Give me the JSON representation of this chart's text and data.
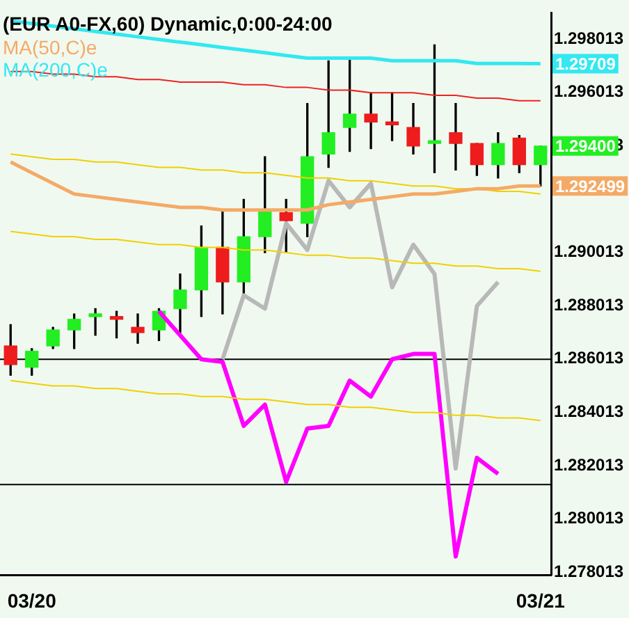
{
  "chart_data": {
    "type": "candlestick",
    "title": "(EUR A0-FX,60) Dynamic,0:00-24:00",
    "categories": [
      null,
      "03/20",
      null,
      null,
      null,
      null,
      null,
      null,
      null,
      null,
      null,
      null,
      null,
      null,
      null,
      null,
      null,
      null,
      null,
      null,
      null,
      null,
      null,
      null,
      null,
      "03/21"
    ],
    "ohlc": [
      [
        1.2865,
        1.2873,
        1.2854,
        1.2858
      ],
      [
        1.2857,
        1.2864,
        1.2854,
        1.2863
      ],
      [
        1.2865,
        1.2872,
        1.2864,
        1.2871
      ],
      [
        1.2871,
        1.2877,
        1.2864,
        1.2875
      ],
      [
        1.2876,
        1.2879,
        1.2869,
        1.2877
      ],
      [
        1.2876,
        1.2878,
        1.2868,
        1.2875
      ],
      [
        1.2872,
        1.2877,
        1.2866,
        1.287
      ],
      [
        1.2871,
        1.2879,
        1.2867,
        1.2878
      ],
      [
        1.2879,
        1.2892,
        1.287,
        1.2886
      ],
      [
        1.2886,
        1.291,
        1.2876,
        1.2902
      ],
      [
        1.2902,
        1.2916,
        1.2877,
        1.2889
      ],
      [
        1.2889,
        1.292,
        1.2884,
        1.2906
      ],
      [
        1.2906,
        1.2936,
        1.29,
        1.2916
      ],
      [
        1.2915,
        1.292,
        1.29,
        1.2912
      ],
      [
        1.2911,
        1.2956,
        1.2906,
        1.2936
      ],
      [
        1.2937,
        1.2972,
        1.2932,
        1.2945
      ],
      [
        1.2947,
        1.2973,
        1.2938,
        1.2952
      ],
      [
        1.2952,
        1.296,
        1.2939,
        1.2949
      ],
      [
        1.2949,
        1.296,
        1.2942,
        1.2948
      ],
      [
        1.2947,
        1.2956,
        1.2937,
        1.294
      ],
      [
        1.2941,
        1.2978,
        1.293,
        1.2942
      ],
      [
        1.2945,
        1.2956,
        1.2931,
        1.2941
      ],
      [
        1.2941,
        1.2941,
        1.2929,
        1.2933
      ],
      [
        1.2933,
        1.2945,
        1.2928,
        1.2941
      ],
      [
        1.2943,
        1.2944,
        1.293,
        1.2933
      ],
      [
        1.2933,
        1.294,
        1.2925,
        1.294
      ]
    ],
    "colors": [
      "#ee1c1c",
      "#22ee22",
      "#22ee22",
      "#22ee22",
      "#22ee22",
      "#ee1c1c",
      "#ee1c1c",
      "#22ee22",
      "#22ee22",
      "#22ee22",
      "#ee1c1c",
      "#22ee22",
      "#22ee22",
      "#ee1c1c",
      "#22ee22",
      "#22ee22",
      "#22ee22",
      "#ee1c1c",
      "#ee1c1c",
      "#ee1c1c",
      "#22ee22",
      "#ee1c1c",
      "#ee1c1c",
      "#22ee22",
      "#ee1c1c",
      "#22ee22"
    ],
    "series": [
      {
        "type": "line",
        "name": "MA(50,C)e",
        "color": "#f4aa66",
        "value_labels": [
          null,
          null,
          null,
          null,
          null,
          null,
          null,
          null,
          null,
          null,
          null,
          null,
          null,
          null,
          null,
          null,
          null,
          null,
          null,
          null,
          null,
          null,
          null,
          null,
          null,
          "1.292499"
        ],
        "values": [
          1.2934,
          1.293,
          1.2926,
          1.2922,
          1.2921,
          1.292,
          1.2919,
          1.2918,
          1.2917,
          1.2917,
          1.2916,
          1.2916,
          1.2916,
          1.2916,
          1.2916,
          1.2918,
          1.2919,
          1.292,
          1.2921,
          1.2922,
          1.2922,
          1.2923,
          1.2924,
          1.2924,
          1.2925,
          1.292499
        ]
      },
      {
        "type": "line",
        "name": "MA(200,C)e",
        "color": "#33e8f0",
        "value_labels": [
          null,
          null,
          null,
          null,
          null,
          null,
          null,
          null,
          null,
          null,
          null,
          null,
          null,
          null,
          null,
          null,
          null,
          null,
          null,
          null,
          null,
          null,
          null,
          null,
          null,
          "1.29709"
        ],
        "values": [
          1.2987,
          1.2986,
          1.2985,
          1.2984,
          1.2983,
          1.2982,
          1.2981,
          1.298,
          1.2979,
          1.2978,
          1.2977,
          1.2976,
          1.2975,
          1.2974,
          1.2973,
          1.2973,
          1.2973,
          1.2973,
          1.2972,
          1.2972,
          1.2972,
          1.2972,
          1.2971,
          1.2971,
          1.2971,
          1.29709
        ]
      },
      {
        "type": "line",
        "color": "#ee2222",
        "values": [
          1.2968,
          1.2968,
          1.2967,
          1.2967,
          1.2966,
          1.2966,
          1.2965,
          1.2965,
          1.2964,
          1.2964,
          1.2964,
          1.2963,
          1.2963,
          1.2962,
          1.2962,
          1.2961,
          1.2961,
          1.296,
          1.296,
          1.296,
          1.2959,
          1.2959,
          1.2958,
          1.2958,
          1.2957,
          1.2957
        ]
      },
      {
        "type": "line",
        "color": "#f0d000",
        "values": [
          1.2937,
          1.2936,
          1.2935,
          1.2935,
          1.2934,
          1.2934,
          1.2933,
          1.2932,
          1.2932,
          1.2931,
          1.2931,
          1.293,
          1.293,
          1.2929,
          1.2928,
          1.2928,
          1.2927,
          1.2927,
          1.2926,
          1.2925,
          1.2925,
          1.2924,
          1.2924,
          1.2923,
          1.2923,
          1.2922
        ]
      },
      {
        "type": "line",
        "color": "#f0d000",
        "values": [
          1.2908,
          1.2907,
          1.2906,
          1.2906,
          1.2905,
          1.2905,
          1.2904,
          1.2903,
          1.2903,
          1.2902,
          1.2902,
          1.2901,
          1.2901,
          1.29,
          1.2899,
          1.2899,
          1.2898,
          1.2898,
          1.2897,
          1.2896,
          1.2896,
          1.2895,
          1.2895,
          1.2894,
          1.2894,
          1.2893
        ]
      },
      {
        "type": "line",
        "color": "#f0d000",
        "values": [
          1.2852,
          1.2851,
          1.285,
          1.285,
          1.2849,
          1.2849,
          1.2848,
          1.2847,
          1.2847,
          1.2846,
          1.2846,
          1.2845,
          1.2845,
          1.2844,
          1.2843,
          1.2843,
          1.2842,
          1.2842,
          1.2841,
          1.284,
          1.284,
          1.2839,
          1.2839,
          1.2838,
          1.2838,
          1.2837
        ]
      },
      {
        "type": "line",
        "color": "#b8b8b8",
        "values": [
          null,
          null,
          null,
          null,
          null,
          null,
          null,
          null,
          null,
          null,
          1.286,
          1.2884,
          1.2879,
          1.2911,
          1.2901,
          1.2927,
          1.2917,
          1.2926,
          1.2887,
          1.2903,
          1.2892,
          1.2819,
          1.288,
          1.2889,
          null,
          null
        ]
      },
      {
        "type": "line",
        "color": "#ff00ff",
        "values": [
          null,
          null,
          null,
          null,
          null,
          null,
          null,
          1.2878,
          1.2869,
          1.286,
          1.2859,
          1.2835,
          1.2843,
          1.2814,
          1.2834,
          1.2835,
          1.2852,
          1.2846,
          1.286,
          1.2862,
          1.2862,
          1.2786,
          1.2823,
          1.2817,
          null,
          null
        ]
      }
    ],
    "ref_lines": [
      {
        "axis": "y",
        "value": 1.286,
        "color": "#000000"
      },
      {
        "axis": "y",
        "value": 1.2813,
        "color": "#000000"
      }
    ],
    "value_labels": [
      null,
      null,
      null,
      null,
      null,
      null,
      null,
      null,
      null,
      null,
      null,
      null,
      null,
      null,
      null,
      null,
      null,
      null,
      null,
      null,
      null,
      null,
      null,
      null,
      null,
      "1.29400"
    ],
    "ylim": [
      1.2779,
      1.299
    ],
    "yticks": [
      1.278013,
      1.280013,
      1.282013,
      1.284013,
      1.286013,
      1.288013,
      1.290013,
      1.294013,
      1.296013,
      1.298013
    ],
    "legend": "top left",
    "grid": false
  }
}
